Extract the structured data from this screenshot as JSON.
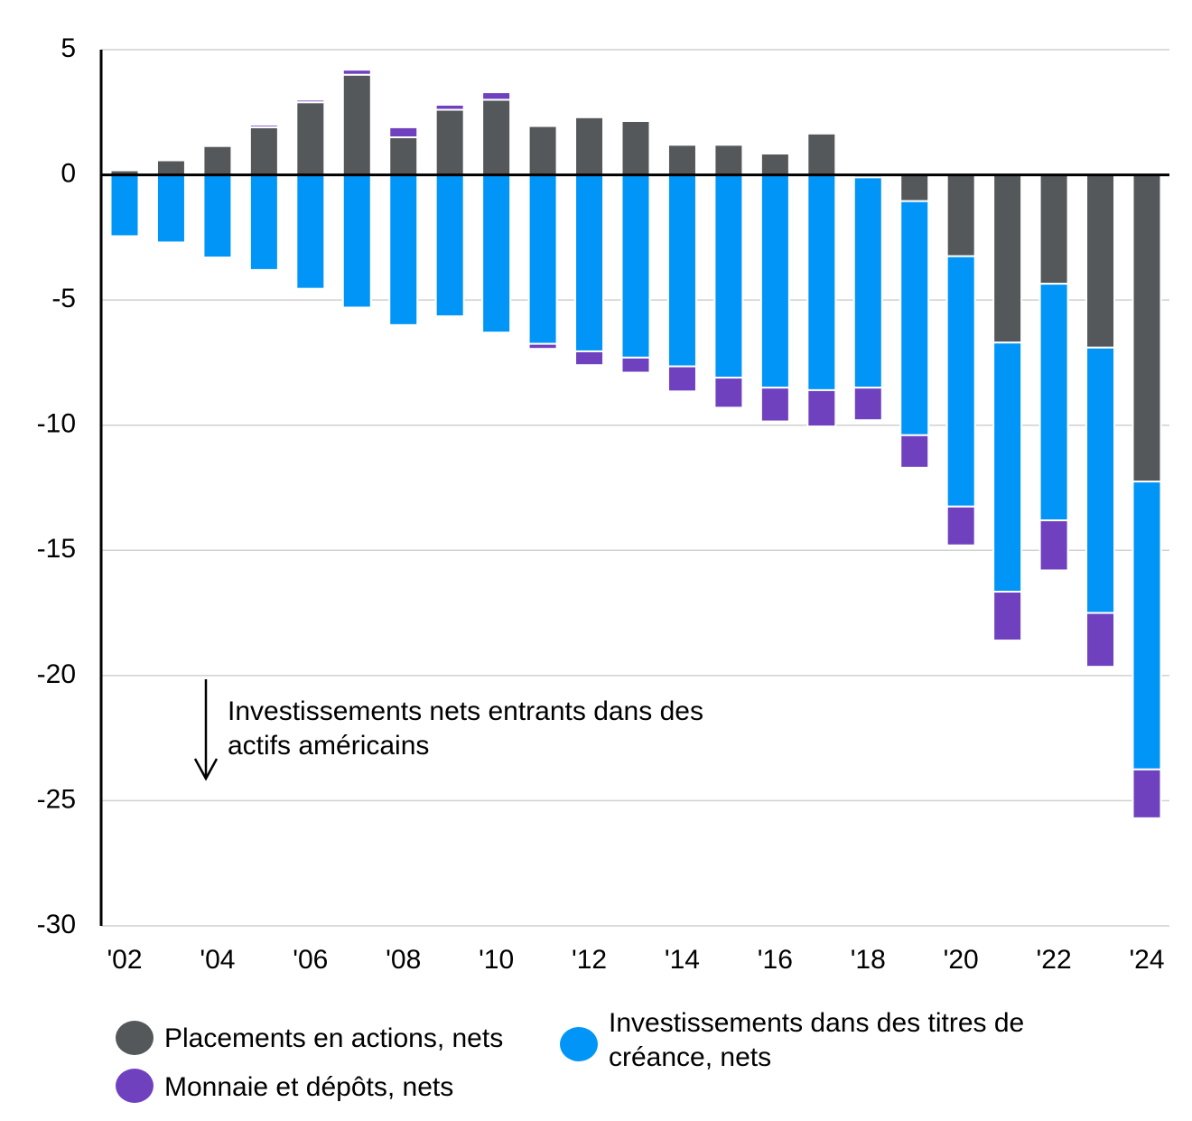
{
  "chart_data": {
    "type": "stacked-bar",
    "categories": [
      "'02",
      null,
      "'04",
      null,
      "'06",
      null,
      "'08",
      null,
      "'10",
      null,
      "'12",
      null,
      "'14",
      null,
      "'16",
      null,
      "'18",
      null,
      "'20",
      null,
      "'22",
      null,
      "'24"
    ],
    "series": [
      {
        "name": "Placements en actions, nets",
        "color": "#54585a",
        "values": [
          0.18,
          0.58,
          1.15,
          1.9,
          2.9,
          4.0,
          1.5,
          2.6,
          3.0,
          1.95,
          2.3,
          2.15,
          1.2,
          1.2,
          0.85,
          1.65,
          -0.1,
          -1.05,
          -3.25,
          -6.7,
          -4.35,
          -6.9,
          -12.25
        ]
      },
      {
        "name": "Investissements dans des titres de créance, nets",
        "color": "#0095f6",
        "values": [
          -2.45,
          -2.7,
          -3.3,
          -3.8,
          -4.55,
          -5.3,
          -6.0,
          -5.65,
          -6.3,
          -6.75,
          -7.05,
          -7.3,
          -7.65,
          -8.1,
          -8.5,
          -8.6,
          -8.4,
          -9.35,
          -10.0,
          -9.95,
          -9.45,
          -10.6,
          -11.5
        ]
      },
      {
        "name": "Monnaie et dépôts, nets",
        "color": "#7041bf",
        "values": [
          0,
          0,
          0,
          0.1,
          0.1,
          0.2,
          0.4,
          0.2,
          0.3,
          -0.2,
          -0.55,
          -0.6,
          -1.0,
          -1.2,
          -1.35,
          -1.45,
          -1.3,
          -1.3,
          -1.55,
          -1.95,
          -2.0,
          -2.15,
          -1.95
        ]
      }
    ],
    "ylim": [
      -30,
      5
    ],
    "yticks": [
      -30,
      -25,
      -20,
      -15,
      -10,
      -5,
      0,
      5
    ],
    "grid": true,
    "annotation": "Investissements nets entrants dans des actifs américains"
  }
}
